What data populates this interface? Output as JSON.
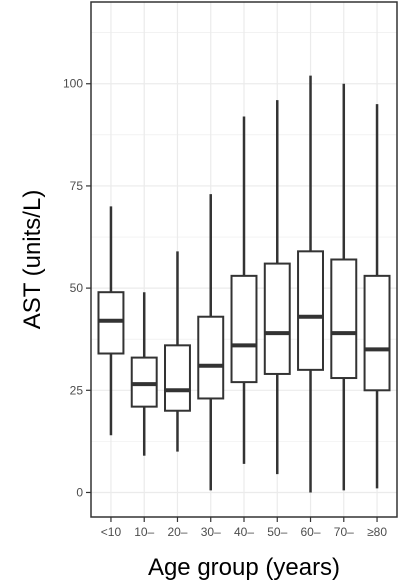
{
  "chart_data": {
    "type": "boxplot",
    "xlabel": "Age group (years)",
    "ylabel": "AST (units/L)",
    "ylim": [
      -6,
      120
    ],
    "y_ticks": [
      0,
      25,
      50,
      75,
      100
    ],
    "grid": true,
    "categories": [
      "<10",
      "10–",
      "20–",
      "30–",
      "40–",
      "50–",
      "60–",
      "70–",
      "≥80"
    ],
    "boxes": [
      {
        "category": "<10",
        "whisker_low": 14,
        "q1": 34,
        "median": 42,
        "q3": 49,
        "whisker_high": 70
      },
      {
        "category": "10–",
        "whisker_low": 9,
        "q1": 21,
        "median": 26.5,
        "q3": 33,
        "whisker_high": 49
      },
      {
        "category": "20–",
        "whisker_low": 10,
        "q1": 20,
        "median": 25,
        "q3": 36,
        "whisker_high": 59
      },
      {
        "category": "30–",
        "whisker_low": 0.5,
        "q1": 23,
        "median": 31,
        "q3": 43,
        "whisker_high": 73
      },
      {
        "category": "40–",
        "whisker_low": 7,
        "q1": 27,
        "median": 36,
        "q3": 53,
        "whisker_high": 92
      },
      {
        "category": "50–",
        "whisker_low": 4.5,
        "q1": 29,
        "median": 39,
        "q3": 56,
        "whisker_high": 96
      },
      {
        "category": "60–",
        "whisker_low": 0,
        "q1": 30,
        "median": 43,
        "q3": 59,
        "whisker_high": 102
      },
      {
        "category": "70–",
        "whisker_low": 0.5,
        "q1": 28,
        "median": 39,
        "q3": 57,
        "whisker_high": 100
      },
      {
        "category": "≥80",
        "whisker_low": 1,
        "q1": 25,
        "median": 35,
        "q3": 53,
        "whisker_high": 95
      }
    ],
    "colors": {
      "box_stroke": "#333333",
      "box_fill": "#ffffff",
      "grid": "#ebebeb",
      "panel_border": "#333333"
    }
  }
}
